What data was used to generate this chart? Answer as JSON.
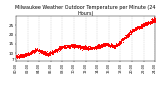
{
  "title": "Milwaukee Weather Outdoor Temperature per Minute (24 Hours)",
  "title_fontsize": 3.5,
  "dot_color": "#ff0000",
  "dot_size": 0.5,
  "bg_color": "#ffffff",
  "plot_bg_color": "#ffffff",
  "ylim": [
    6,
    30
  ],
  "yticks": [
    7,
    10,
    15,
    20,
    25
  ],
  "ylabel_fontsize": 3.0,
  "xlabel_fontsize": 2.5,
  "grid_color": "#bbbbbb",
  "n_points": 1440
}
